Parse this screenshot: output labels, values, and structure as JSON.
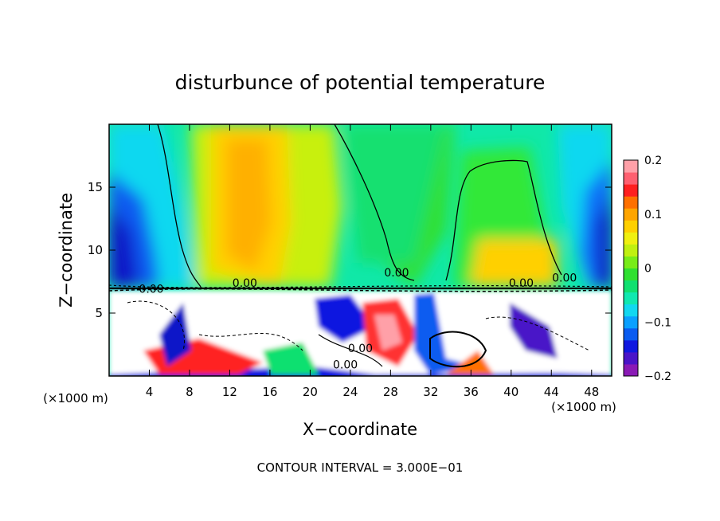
{
  "chart_data": {
    "type": "heatmap",
    "title": "disturbunce of potential temperature",
    "xlabel": "X−coordinate",
    "ylabel": "Z−coordinate",
    "x_unit_left": "(×1000 m)",
    "x_unit_right": "(×1000 m)",
    "xlim": [
      0,
      50
    ],
    "ylim": [
      0,
      20
    ],
    "x_ticks": [
      4,
      8,
      12,
      16,
      20,
      24,
      28,
      32,
      36,
      40,
      44,
      48
    ],
    "x_tick_labels": [
      "4",
      "8",
      "12",
      "16",
      "20",
      "24",
      "28",
      "32",
      "36",
      "40",
      "44",
      "48"
    ],
    "y_ticks": [
      5,
      10,
      15
    ],
    "y_tick_labels": [
      "5",
      "10",
      "15"
    ],
    "colorbar": {
      "range": [
        -0.2,
        0.2
      ],
      "ticks": [
        0.2,
        0.1,
        0,
        -0.1,
        -0.2
      ],
      "tick_labels": [
        "0.2",
        "0.1",
        "0",
        "−0.1",
        "−0.2"
      ],
      "colors": [
        "#8a1ab5",
        "#4a14c8",
        "#1018e0",
        "#0a5cf0",
        "#0aa0ff",
        "#12d8f0",
        "#10e8b0",
        "#10e070",
        "#30e030",
        "#78ec18",
        "#c0f010",
        "#f0f010",
        "#ffd000",
        "#ffa500",
        "#ff7000",
        "#ff2020",
        "#ff6070",
        "#ffa0a8"
      ]
    },
    "contour_labels": [
      {
        "text": "0.00",
        "x": 4.2,
        "y": 6.6
      },
      {
        "text": "0.00",
        "x": 13.5,
        "y": 7.1
      },
      {
        "text": "0.00",
        "x": 28.6,
        "y": 7.9
      },
      {
        "text": "0.00",
        "x": 41.0,
        "y": 7.1
      },
      {
        "text": "0.00",
        "x": 45.3,
        "y": 7.5
      },
      {
        "text": "0.00",
        "x": 25.0,
        "y": 1.9
      },
      {
        "text": "0.00",
        "x": 23.5,
        "y": 0.6
      }
    ],
    "footer": "CONTOUR INTERVAL = 3.000E−01"
  }
}
